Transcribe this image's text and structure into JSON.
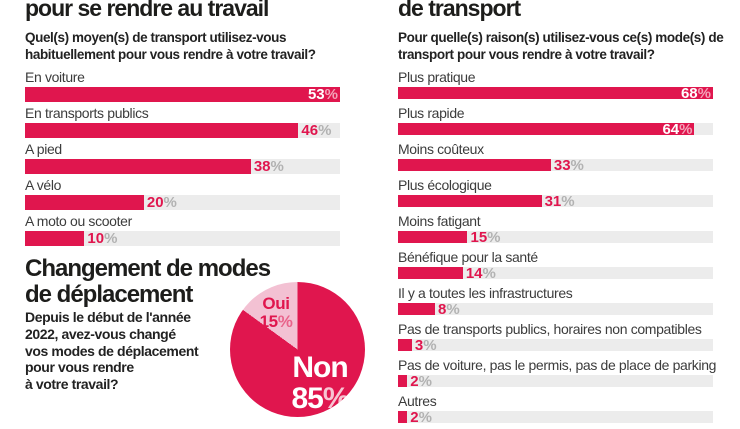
{
  "ui": {
    "percent": "%"
  },
  "colors": {
    "accent": "#e0164e",
    "accent_light": "#f3c1d3",
    "track": "#ececec",
    "title_text": "#1d1d1b",
    "label_text": "#3c3c3c",
    "percent_gray": "#b2b2b2"
  },
  "left": {
    "title": "pour se rendre au travail",
    "question": [
      "Quel(s) moyen(s) de transport utilisez-vous",
      "habituellement pour vous rendre à votre travail?"
    ],
    "scale_max": 53,
    "bars": [
      {
        "label": "En voiture",
        "value": 53
      },
      {
        "label": "En transports publics",
        "value": 46
      },
      {
        "label": "A pied",
        "value": 38
      },
      {
        "label": "A vélo",
        "value": 20
      },
      {
        "label": "A moto ou scooter",
        "value": 10
      }
    ]
  },
  "change": {
    "title": [
      "Changement de modes",
      "de déplacement"
    ],
    "question": [
      "Depuis le début de l'année",
      "2022, avez-vous changé",
      "vos modes de déplacement",
      "pour vous rendre",
      "à votre travail?"
    ],
    "pie": {
      "slices": [
        {
          "label": "Oui",
          "value": 15
        },
        {
          "label": "Non",
          "value": 85
        }
      ]
    }
  },
  "right": {
    "title": "de transport",
    "question": [
      "Pour quelle(s) raison(s) utilisez-vous ce(s) mode(s) de",
      "transport pour vous rendre à votre travail?"
    ],
    "scale_max": 68,
    "bars": [
      {
        "label": "Plus pratique",
        "value": 68
      },
      {
        "label": "Plus rapide",
        "value": 64
      },
      {
        "label": "Moins coûteux",
        "value": 33
      },
      {
        "label": "Plus écologique",
        "value": 31
      },
      {
        "label": "Moins fatigant",
        "value": 15
      },
      {
        "label": "Bénéfique pour la santé",
        "value": 14
      },
      {
        "label": "Il y a toutes les infrastructures",
        "value": 8
      },
      {
        "label": "Pas de transports publics, horaires non compatibles",
        "value": 3
      },
      {
        "label": "Pas de voiture, pas le permis, pas de place de parking",
        "value": 2
      },
      {
        "label": "Autres",
        "value": 2
      }
    ]
  },
  "chart_data": [
    {
      "type": "bar",
      "orientation": "horizontal",
      "title": "pour se rendre au travail",
      "subtitle": "Quel(s) moyen(s) de transport utilisez-vous habituellement pour vous rendre à votre travail?",
      "categories": [
        "En voiture",
        "En transports publics",
        "A pied",
        "A vélo",
        "A moto ou scooter"
      ],
      "values": [
        53,
        46,
        38,
        20,
        10
      ],
      "unit": "%",
      "xlim": [
        0,
        53
      ],
      "grid": false,
      "legend": "none"
    },
    {
      "type": "bar",
      "orientation": "horizontal",
      "title": "de transport",
      "subtitle": "Pour quelle(s) raison(s) utilisez-vous ce(s) mode(s) de transport pour vous rendre à votre travail?",
      "categories": [
        "Plus pratique",
        "Plus rapide",
        "Moins coûteux",
        "Plus écologique",
        "Moins fatigant",
        "Bénéfique pour la santé",
        "Il y a toutes les infrastructures",
        "Pas de transports publics, horaires non compatibles",
        "Pas de voiture, pas le permis, pas de place de parking",
        "Autres"
      ],
      "values": [
        68,
        64,
        33,
        31,
        15,
        14,
        8,
        3,
        2,
        2
      ],
      "unit": "%",
      "xlim": [
        0,
        68
      ],
      "grid": false,
      "legend": "none"
    },
    {
      "type": "pie",
      "title": "Changement de modes de déplacement",
      "subtitle": "Depuis le début de l'année 2022, avez-vous changé vos modes de déplacement pour vous rendre à votre travail?",
      "categories": [
        "Oui",
        "Non"
      ],
      "values": [
        15,
        85
      ],
      "unit": "%",
      "colors": [
        "#f3c1d3",
        "#e0164e"
      ],
      "start_angle_deg": -54,
      "legend": "labels-inside"
    }
  ]
}
